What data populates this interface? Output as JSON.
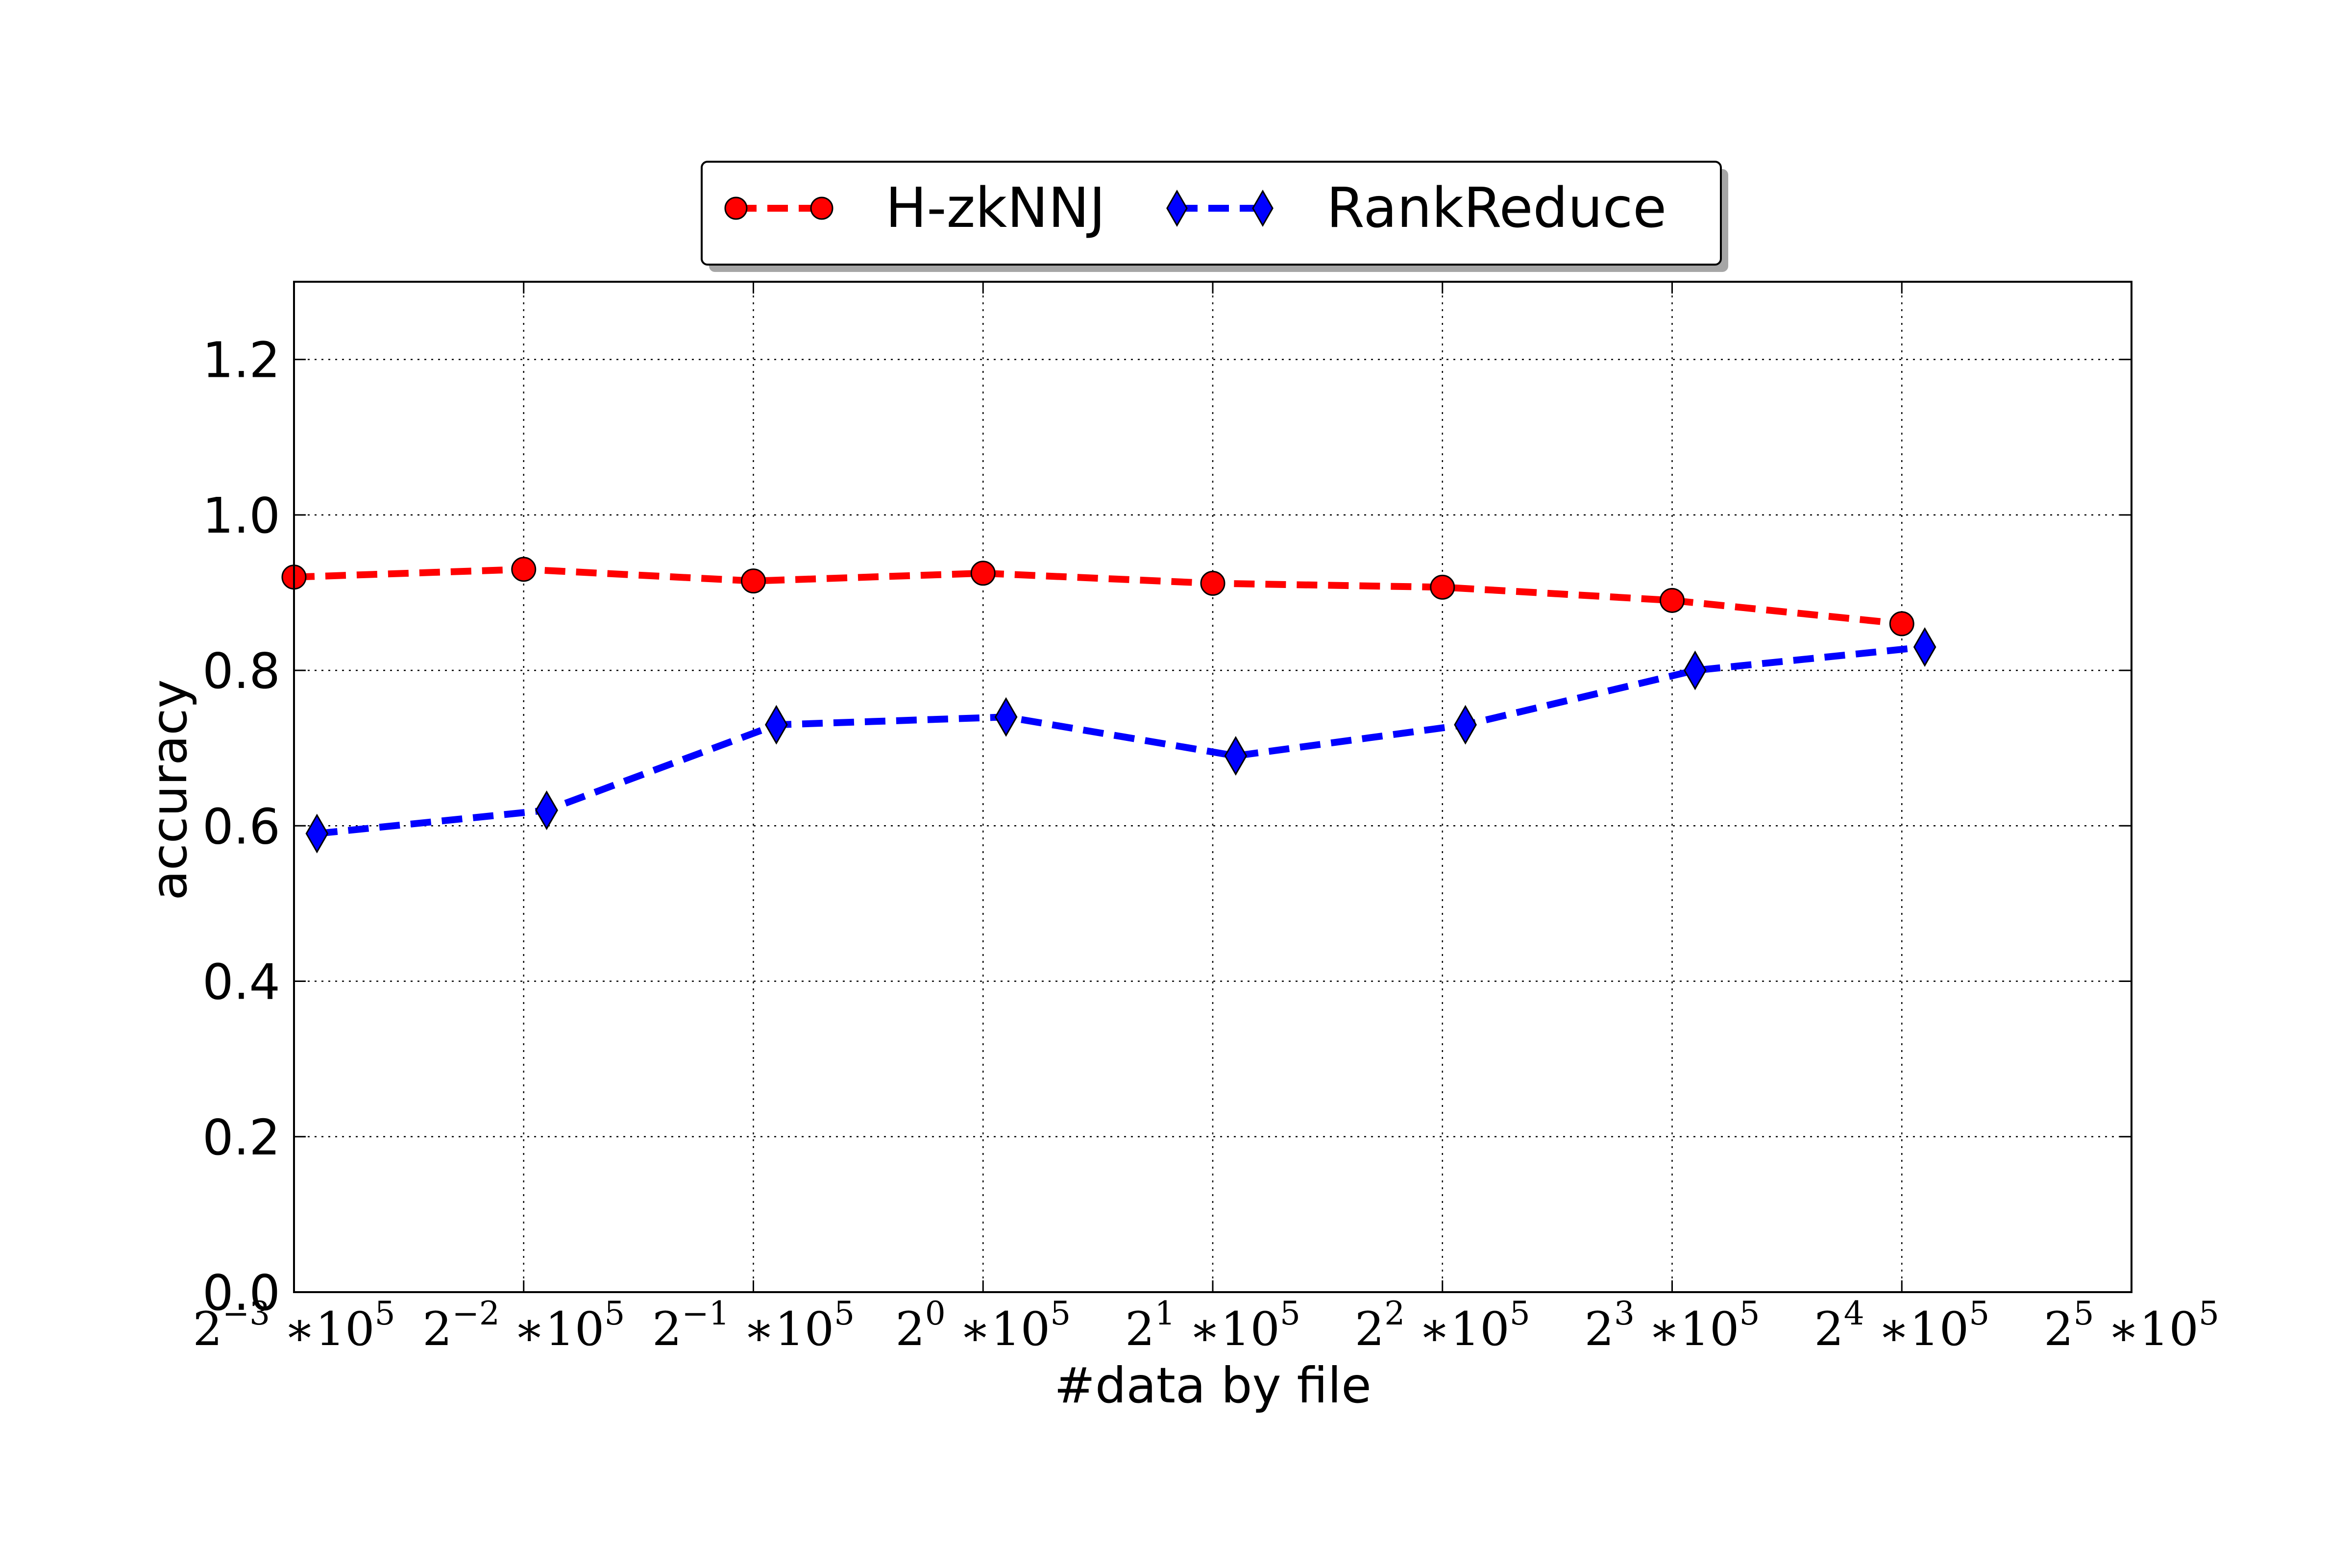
{
  "chart_data": {
    "type": "line",
    "title": "",
    "xlabel": "#data by file",
    "ylabel": "accuracy",
    "x_ticks": [
      {
        "base": "2",
        "exp": "−3",
        "suffix": "∗10",
        "suffix_exp": "5"
      },
      {
        "base": "2",
        "exp": "−2",
        "suffix": "∗10",
        "suffix_exp": "5"
      },
      {
        "base": "2",
        "exp": "−1",
        "suffix": "∗10",
        "suffix_exp": "5"
      },
      {
        "base": "2",
        "exp": "0",
        "suffix": "∗10",
        "suffix_exp": "5"
      },
      {
        "base": "2",
        "exp": "1",
        "suffix": "∗10",
        "suffix_exp": "5"
      },
      {
        "base": "2",
        "exp": "2",
        "suffix": "∗10",
        "suffix_exp": "5"
      },
      {
        "base": "2",
        "exp": "3",
        "suffix": "∗10",
        "suffix_exp": "5"
      },
      {
        "base": "2",
        "exp": "4",
        "suffix": "∗10",
        "suffix_exp": "5"
      },
      {
        "base": "2",
        "exp": "5",
        "suffix": "∗10",
        "suffix_exp": "5"
      }
    ],
    "y_ticks": [
      "0.0",
      "0.2",
      "0.4",
      "0.6",
      "0.8",
      "1.0",
      "1.2"
    ],
    "xlim": [
      0,
      8
    ],
    "ylim": [
      0,
      1.3
    ],
    "grid": true,
    "legend_position": "top-center",
    "series": [
      {
        "name": "H-zkNNJ",
        "color": "#ff0000",
        "marker": "circle",
        "x": [
          0,
          1,
          2,
          3,
          4,
          5,
          6,
          7
        ],
        "values": [
          0.92,
          0.93,
          0.915,
          0.925,
          0.912,
          0.907,
          0.89,
          0.86
        ]
      },
      {
        "name": "RankReduce",
        "color": "#0000ff",
        "marker": "thin-diamond",
        "x": [
          0.1,
          1.1,
          2.1,
          3.1,
          4.1,
          5.1,
          6.1,
          7.1
        ],
        "values": [
          0.59,
          0.62,
          0.73,
          0.74,
          0.69,
          0.73,
          0.8,
          0.83
        ]
      }
    ]
  }
}
